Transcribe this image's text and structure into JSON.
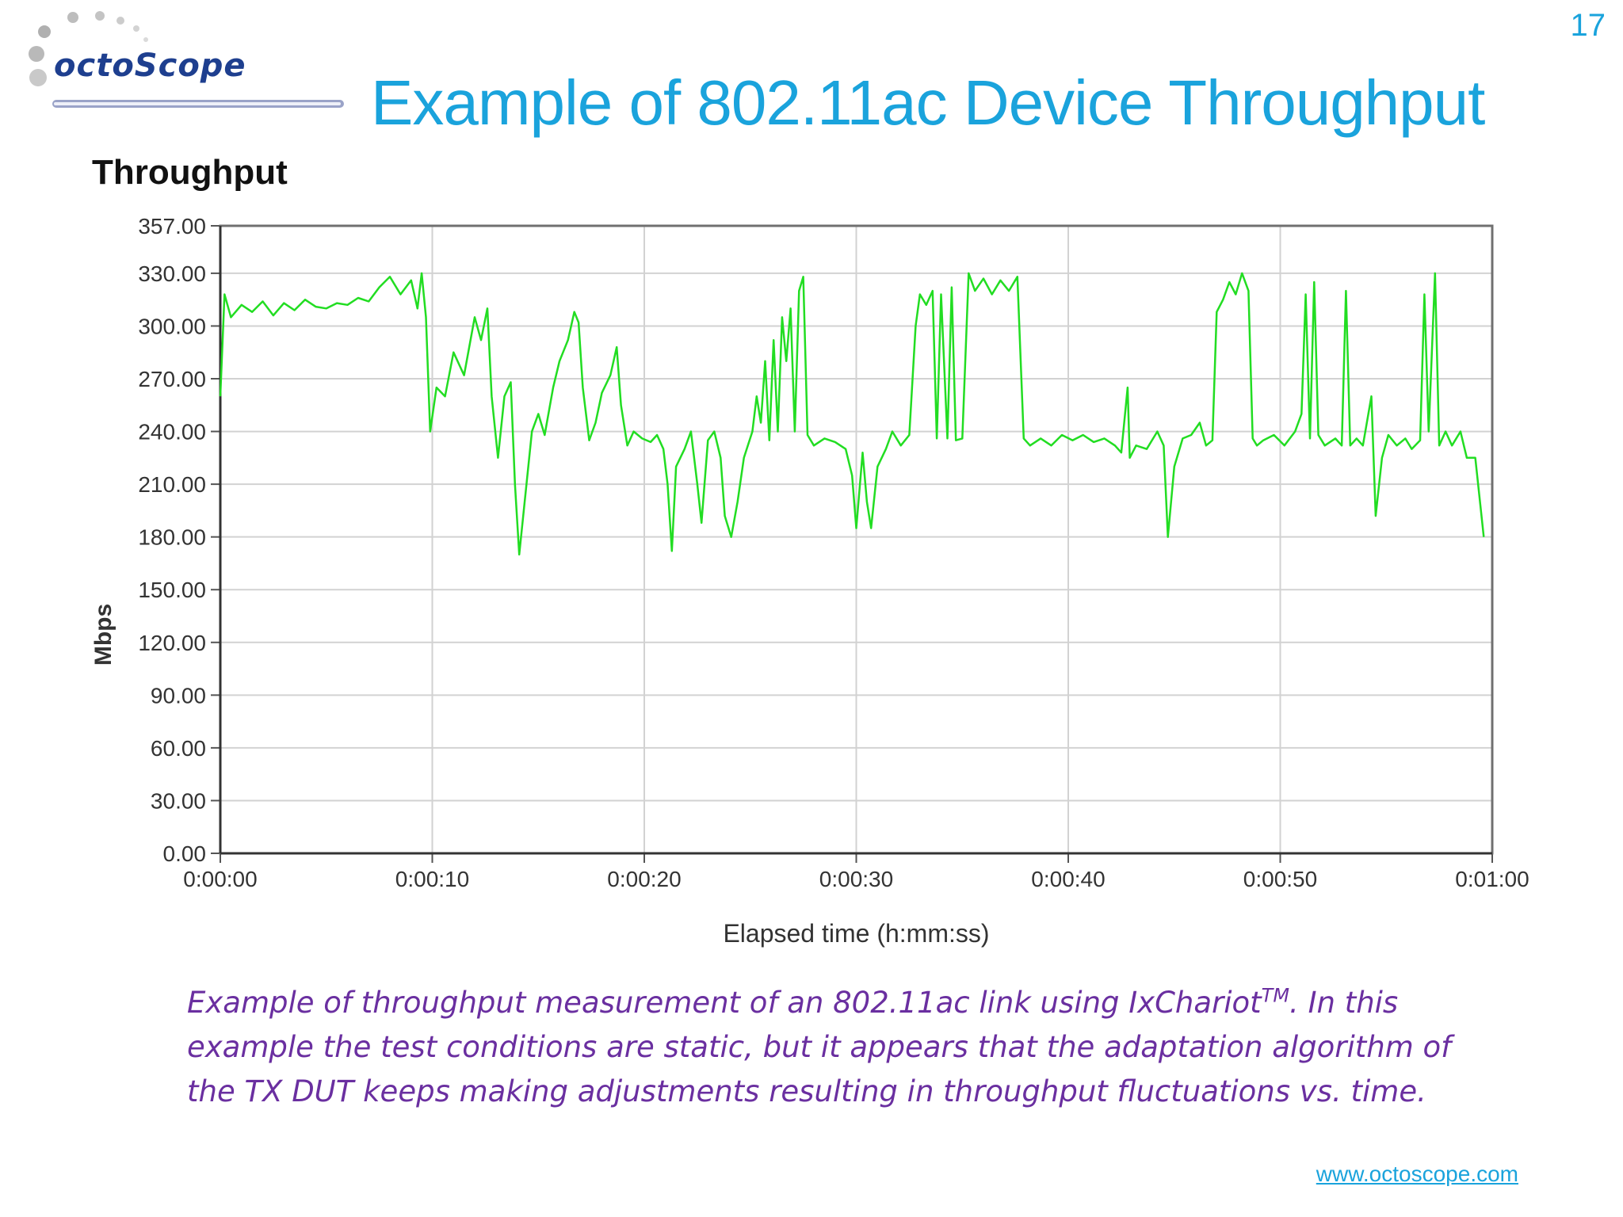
{
  "slide": {
    "number": "17",
    "title": "Example of 802.11ac Device Throughput",
    "logo_text": "octoScope",
    "caption_before_tm": "Example of throughput measurement of an 802.11ac link using IxChariot",
    "caption_tm": "TM",
    "caption_after_tm": ".  In this example the test conditions are static, but it appears that the adaptation algorithm of the TX DUT keeps making adjustments resulting in throughput fluctuations vs. time.",
    "footer_link": "www.octoscope.com",
    "accent_color": "#1aa3dc",
    "caption_color": "#6a2fa0"
  },
  "chart_data": {
    "type": "line",
    "title": "Throughput",
    "xlabel": "Elapsed time (h:mm:ss)",
    "ylabel": "Mbps",
    "ylim": [
      0,
      357
    ],
    "xlim": [
      0,
      60
    ],
    "y_ticks": [
      "0.00",
      "30.00",
      "60.00",
      "90.00",
      "120.00",
      "150.00",
      "180.00",
      "210.00",
      "240.00",
      "270.00",
      "300.00",
      "330.00",
      "357.00"
    ],
    "y_tick_values": [
      0,
      30,
      60,
      90,
      120,
      150,
      180,
      210,
      240,
      270,
      300,
      330,
      357
    ],
    "x_ticks": [
      "0:00:00",
      "0:00:10",
      "0:00:20",
      "0:00:30",
      "0:00:40",
      "0:00:50",
      "0:01:00"
    ],
    "x_tick_values": [
      0,
      10,
      20,
      30,
      40,
      50,
      60
    ],
    "grid": true,
    "line_color": "#22dd22",
    "series": [
      {
        "values": [
          [
            0.0,
            260
          ],
          [
            0.2,
            318
          ],
          [
            0.5,
            305
          ],
          [
            1.0,
            312
          ],
          [
            1.5,
            308
          ],
          [
            2.0,
            314
          ],
          [
            2.5,
            306
          ],
          [
            3.0,
            313
          ],
          [
            3.5,
            309
          ],
          [
            4.0,
            315
          ],
          [
            4.5,
            311
          ],
          [
            5.0,
            310
          ],
          [
            5.5,
            313
          ],
          [
            6.0,
            312
          ],
          [
            6.5,
            316
          ],
          [
            7.0,
            314
          ],
          [
            7.5,
            322
          ],
          [
            8.0,
            328
          ],
          [
            8.5,
            318
          ],
          [
            9.0,
            326
          ],
          [
            9.3,
            310
          ],
          [
            9.5,
            330
          ],
          [
            9.7,
            305
          ],
          [
            9.9,
            240
          ],
          [
            10.2,
            265
          ],
          [
            10.6,
            260
          ],
          [
            11.0,
            285
          ],
          [
            11.5,
            272
          ],
          [
            12.0,
            305
          ],
          [
            12.3,
            292
          ],
          [
            12.6,
            310
          ],
          [
            12.8,
            260
          ],
          [
            13.1,
            225
          ],
          [
            13.4,
            260
          ],
          [
            13.7,
            268
          ],
          [
            13.9,
            210
          ],
          [
            14.1,
            170
          ],
          [
            14.4,
            205
          ],
          [
            14.7,
            240
          ],
          [
            15.0,
            250
          ],
          [
            15.3,
            238
          ],
          [
            15.7,
            265
          ],
          [
            16.0,
            280
          ],
          [
            16.4,
            292
          ],
          [
            16.7,
            308
          ],
          [
            16.9,
            302
          ],
          [
            17.1,
            265
          ],
          [
            17.4,
            235
          ],
          [
            17.7,
            245
          ],
          [
            18.0,
            262
          ],
          [
            18.4,
            272
          ],
          [
            18.7,
            288
          ],
          [
            18.9,
            255
          ],
          [
            19.2,
            232
          ],
          [
            19.5,
            240
          ],
          [
            19.9,
            236
          ],
          [
            20.3,
            234
          ],
          [
            20.6,
            238
          ],
          [
            20.9,
            230
          ],
          [
            21.1,
            210
          ],
          [
            21.3,
            172
          ],
          [
            21.5,
            220
          ],
          [
            21.9,
            230
          ],
          [
            22.2,
            240
          ],
          [
            22.5,
            210
          ],
          [
            22.7,
            188
          ],
          [
            23.0,
            235
          ],
          [
            23.3,
            240
          ],
          [
            23.6,
            225
          ],
          [
            23.8,
            192
          ],
          [
            24.1,
            180
          ],
          [
            24.4,
            200
          ],
          [
            24.7,
            225
          ],
          [
            25.1,
            240
          ],
          [
            25.3,
            260
          ],
          [
            25.5,
            245
          ],
          [
            25.7,
            280
          ],
          [
            25.9,
            235
          ],
          [
            26.1,
            292
          ],
          [
            26.3,
            240
          ],
          [
            26.5,
            305
          ],
          [
            26.7,
            280
          ],
          [
            26.9,
            310
          ],
          [
            27.1,
            240
          ],
          [
            27.3,
            320
          ],
          [
            27.5,
            328
          ],
          [
            27.7,
            238
          ],
          [
            28.0,
            232
          ],
          [
            28.5,
            236
          ],
          [
            29.0,
            234
          ],
          [
            29.5,
            230
          ],
          [
            29.8,
            215
          ],
          [
            30.0,
            185
          ],
          [
            30.3,
            228
          ],
          [
            30.5,
            200
          ],
          [
            30.7,
            185
          ],
          [
            31.0,
            220
          ],
          [
            31.4,
            230
          ],
          [
            31.7,
            240
          ],
          [
            32.1,
            232
          ],
          [
            32.5,
            238
          ],
          [
            32.8,
            300
          ],
          [
            33.0,
            318
          ],
          [
            33.3,
            312
          ],
          [
            33.6,
            320
          ],
          [
            33.8,
            236
          ],
          [
            34.0,
            318
          ],
          [
            34.3,
            236
          ],
          [
            34.5,
            322
          ],
          [
            34.7,
            235
          ],
          [
            35.0,
            236
          ],
          [
            35.3,
            330
          ],
          [
            35.6,
            320
          ],
          [
            36.0,
            327
          ],
          [
            36.4,
            318
          ],
          [
            36.8,
            326
          ],
          [
            37.2,
            320
          ],
          [
            37.6,
            328
          ],
          [
            37.9,
            236
          ],
          [
            38.2,
            232
          ],
          [
            38.7,
            236
          ],
          [
            39.2,
            232
          ],
          [
            39.7,
            238
          ],
          [
            40.2,
            235
          ],
          [
            40.7,
            238
          ],
          [
            41.2,
            234
          ],
          [
            41.7,
            236
          ],
          [
            42.2,
            232
          ],
          [
            42.5,
            228
          ],
          [
            42.8,
            265
          ],
          [
            42.9,
            225
          ],
          [
            43.2,
            232
          ],
          [
            43.7,
            230
          ],
          [
            44.2,
            240
          ],
          [
            44.5,
            232
          ],
          [
            44.7,
            180
          ],
          [
            45.0,
            220
          ],
          [
            45.4,
            236
          ],
          [
            45.8,
            238
          ],
          [
            46.2,
            245
          ],
          [
            46.5,
            232
          ],
          [
            46.8,
            235
          ],
          [
            47.0,
            308
          ],
          [
            47.3,
            315
          ],
          [
            47.6,
            325
          ],
          [
            47.9,
            318
          ],
          [
            48.2,
            330
          ],
          [
            48.5,
            320
          ],
          [
            48.7,
            236
          ],
          [
            48.9,
            232
          ],
          [
            49.2,
            235
          ],
          [
            49.7,
            238
          ],
          [
            50.2,
            232
          ],
          [
            50.7,
            240
          ],
          [
            51.0,
            250
          ],
          [
            51.2,
            318
          ],
          [
            51.4,
            236
          ],
          [
            51.6,
            325
          ],
          [
            51.8,
            238
          ],
          [
            52.1,
            232
          ],
          [
            52.6,
            236
          ],
          [
            52.9,
            232
          ],
          [
            53.1,
            320
          ],
          [
            53.3,
            232
          ],
          [
            53.6,
            236
          ],
          [
            53.9,
            232
          ],
          [
            54.3,
            260
          ],
          [
            54.5,
            192
          ],
          [
            54.8,
            225
          ],
          [
            55.1,
            238
          ],
          [
            55.5,
            232
          ],
          [
            55.9,
            236
          ],
          [
            56.2,
            230
          ],
          [
            56.6,
            235
          ],
          [
            56.8,
            318
          ],
          [
            57.0,
            240
          ],
          [
            57.3,
            330
          ],
          [
            57.5,
            232
          ],
          [
            57.8,
            240
          ],
          [
            58.1,
            232
          ],
          [
            58.5,
            240
          ],
          [
            58.8,
            225
          ],
          [
            59.2,
            225
          ],
          [
            59.6,
            180
          ]
        ]
      }
    ]
  }
}
